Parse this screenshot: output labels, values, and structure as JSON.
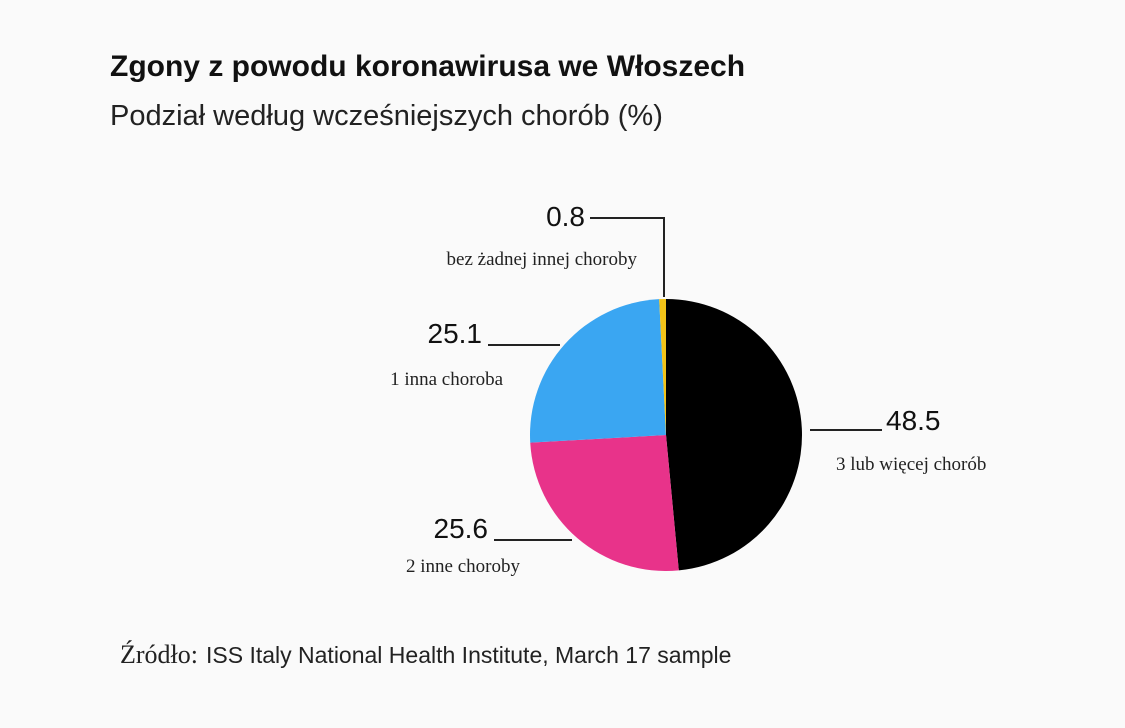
{
  "title": "Zgony z powodu koronawirusa we Włoszech",
  "subtitle": "Podział według wcześniejszych chorób (%)",
  "source_label": "Źródło:",
  "source_text": "ISS Italy National Health Institute, March 17 sample",
  "chart_data": {
    "type": "pie",
    "title": "Zgony z powodu koronawirusa we Włoszech",
    "subtitle": "Podział według wcześniejszych chorób (%)",
    "slices": [
      {
        "label": "3 lub więcej chorób",
        "value": 48.5,
        "value_text": "48.5",
        "color": "#000000"
      },
      {
        "label": "2 inne choroby",
        "value": 25.6,
        "value_text": "25.6",
        "color": "#e8338a"
      },
      {
        "label": "1 inna choroba",
        "value": 25.1,
        "value_text": "25.1",
        "color": "#3aa6f2"
      },
      {
        "label": "bez żadnej innej choroby",
        "value": 0.8,
        "value_text": "0.8",
        "color": "#f2c318"
      }
    ]
  }
}
